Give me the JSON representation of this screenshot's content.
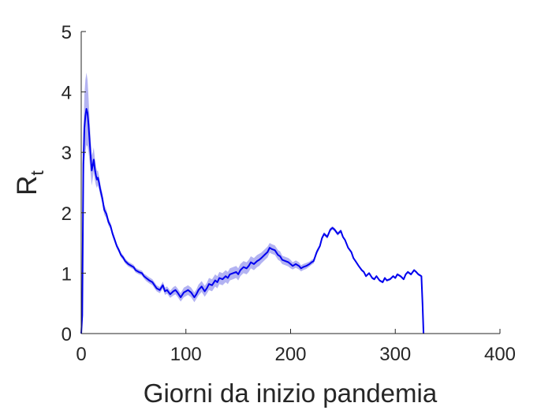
{
  "chart_data": {
    "type": "line",
    "xlabel": "Giorni da inizio pandemia",
    "ylabel": "R",
    "ylabel_subscript": "t",
    "xlim": [
      0,
      400
    ],
    "ylim": [
      0,
      5
    ],
    "xticks": [
      0,
      100,
      200,
      300,
      400
    ],
    "yticks": [
      0,
      1,
      2,
      3,
      4,
      5
    ],
    "grid": false,
    "legend": "none",
    "colors": {
      "line": "#0000ee",
      "band": "#b3b3f2",
      "axis": "#262626"
    },
    "series": [
      {
        "x": [
          0,
          1,
          2,
          3,
          4,
          5,
          6,
          7,
          8,
          9,
          10,
          11,
          12,
          13,
          14,
          15,
          16,
          17,
          18,
          20,
          22,
          24,
          26,
          28,
          30,
          32,
          34,
          36,
          38,
          40,
          42,
          45,
          48,
          50,
          52,
          55,
          58,
          60,
          62,
          65,
          68,
          70,
          72,
          75,
          78,
          80,
          82,
          85,
          88,
          90,
          92,
          95,
          98,
          100,
          102,
          105,
          108,
          110,
          112,
          115,
          118,
          120,
          122,
          125,
          128,
          130,
          132,
          135,
          138,
          140,
          142,
          145,
          148,
          150,
          152,
          155,
          158,
          160,
          162,
          165,
          168,
          170,
          172,
          175,
          178,
          180,
          182,
          185,
          188,
          190,
          192,
          195,
          198,
          200,
          202,
          205,
          208,
          210,
          212,
          215,
          218,
          220,
          222,
          225,
          228,
          230,
          232,
          235,
          238,
          240,
          242,
          245,
          248,
          250,
          252,
          255,
          258,
          260,
          262,
          265,
          268,
          270,
          272,
          275,
          278,
          280,
          282,
          285,
          288,
          290,
          292,
          295,
          298,
          300,
          302,
          305,
          308,
          310,
          312,
          315,
          318,
          320,
          322,
          325,
          326,
          327
        ],
        "y": [
          0,
          0.3,
          2.8,
          3.4,
          3.6,
          3.72,
          3.65,
          3.45,
          3.2,
          2.95,
          2.7,
          2.78,
          2.88,
          2.72,
          2.62,
          2.55,
          2.58,
          2.5,
          2.4,
          2.25,
          2.05,
          1.98,
          1.85,
          1.78,
          1.65,
          1.55,
          1.45,
          1.38,
          1.3,
          1.26,
          1.2,
          1.15,
          1.12,
          1.1,
          1.05,
          1.02,
          1.0,
          0.95,
          0.92,
          0.88,
          0.85,
          0.8,
          0.75,
          0.72,
          0.8,
          0.7,
          0.72,
          0.65,
          0.7,
          0.72,
          0.68,
          0.6,
          0.68,
          0.7,
          0.72,
          0.68,
          0.6,
          0.65,
          0.72,
          0.78,
          0.7,
          0.75,
          0.82,
          0.8,
          0.88,
          0.85,
          0.92,
          0.9,
          0.95,
          0.92,
          0.98,
          1.0,
          1.02,
          0.98,
          1.05,
          1.1,
          1.08,
          1.12,
          1.18,
          1.15,
          1.2,
          1.22,
          1.25,
          1.3,
          1.35,
          1.42,
          1.4,
          1.38,
          1.3,
          1.28,
          1.22,
          1.2,
          1.18,
          1.15,
          1.12,
          1.15,
          1.12,
          1.08,
          1.1,
          1.12,
          1.15,
          1.18,
          1.2,
          1.35,
          1.45,
          1.58,
          1.65,
          1.6,
          1.72,
          1.75,
          1.72,
          1.65,
          1.7,
          1.6,
          1.55,
          1.42,
          1.35,
          1.25,
          1.2,
          1.12,
          1.05,
          1.02,
          0.95,
          1.0,
          0.92,
          0.9,
          0.95,
          0.88,
          0.85,
          0.92,
          0.88,
          0.9,
          0.95,
          0.92,
          0.98,
          0.95,
          0.9,
          0.98,
          1.02,
          0.98,
          1.05,
          1.02,
          0.98,
          0.95,
          0.5,
          0.0
        ],
        "band_halfwidth": [
          0,
          0.1,
          0.5,
          0.55,
          0.6,
          0.6,
          0.55,
          0.45,
          0.35,
          0.3,
          0.25,
          0.22,
          0.2,
          0.18,
          0.16,
          0.14,
          0.12,
          0.11,
          0.1,
          0.09,
          0.08,
          0.07,
          0.06,
          0.05,
          0.05,
          0.05,
          0.04,
          0.04,
          0.04,
          0.04,
          0.04,
          0.04,
          0.04,
          0.04,
          0.04,
          0.04,
          0.04,
          0.04,
          0.05,
          0.05,
          0.05,
          0.05,
          0.05,
          0.05,
          0.06,
          0.06,
          0.06,
          0.06,
          0.07,
          0.07,
          0.07,
          0.07,
          0.08,
          0.08,
          0.08,
          0.08,
          0.08,
          0.08,
          0.09,
          0.09,
          0.09,
          0.09,
          0.1,
          0.1,
          0.1,
          0.1,
          0.1,
          0.1,
          0.1,
          0.1,
          0.1,
          0.1,
          0.1,
          0.1,
          0.1,
          0.1,
          0.1,
          0.1,
          0.1,
          0.1,
          0.1,
          0.1,
          0.09,
          0.09,
          0.09,
          0.08,
          0.08,
          0.08,
          0.08,
          0.08,
          0.07,
          0.07,
          0.07,
          0.07,
          0.06,
          0.06,
          0.06,
          0.05,
          0.05,
          0.05,
          0.04,
          0.04,
          0.04,
          0.04,
          0.03,
          0.03,
          0.03,
          0.03,
          0.03,
          0.03,
          0.03,
          0.03,
          0.03,
          0.02,
          0.02,
          0.02,
          0.02,
          0.02,
          0.02,
          0.02,
          0.02,
          0.02,
          0.02,
          0.02,
          0.02,
          0.02,
          0.02,
          0.02,
          0.02,
          0.02,
          0.02,
          0.02,
          0.02,
          0.02,
          0.02,
          0.02,
          0.02,
          0.02,
          0.02,
          0.02,
          0.02,
          0.02,
          0.02,
          0.02,
          0.0,
          0.0
        ]
      }
    ]
  }
}
